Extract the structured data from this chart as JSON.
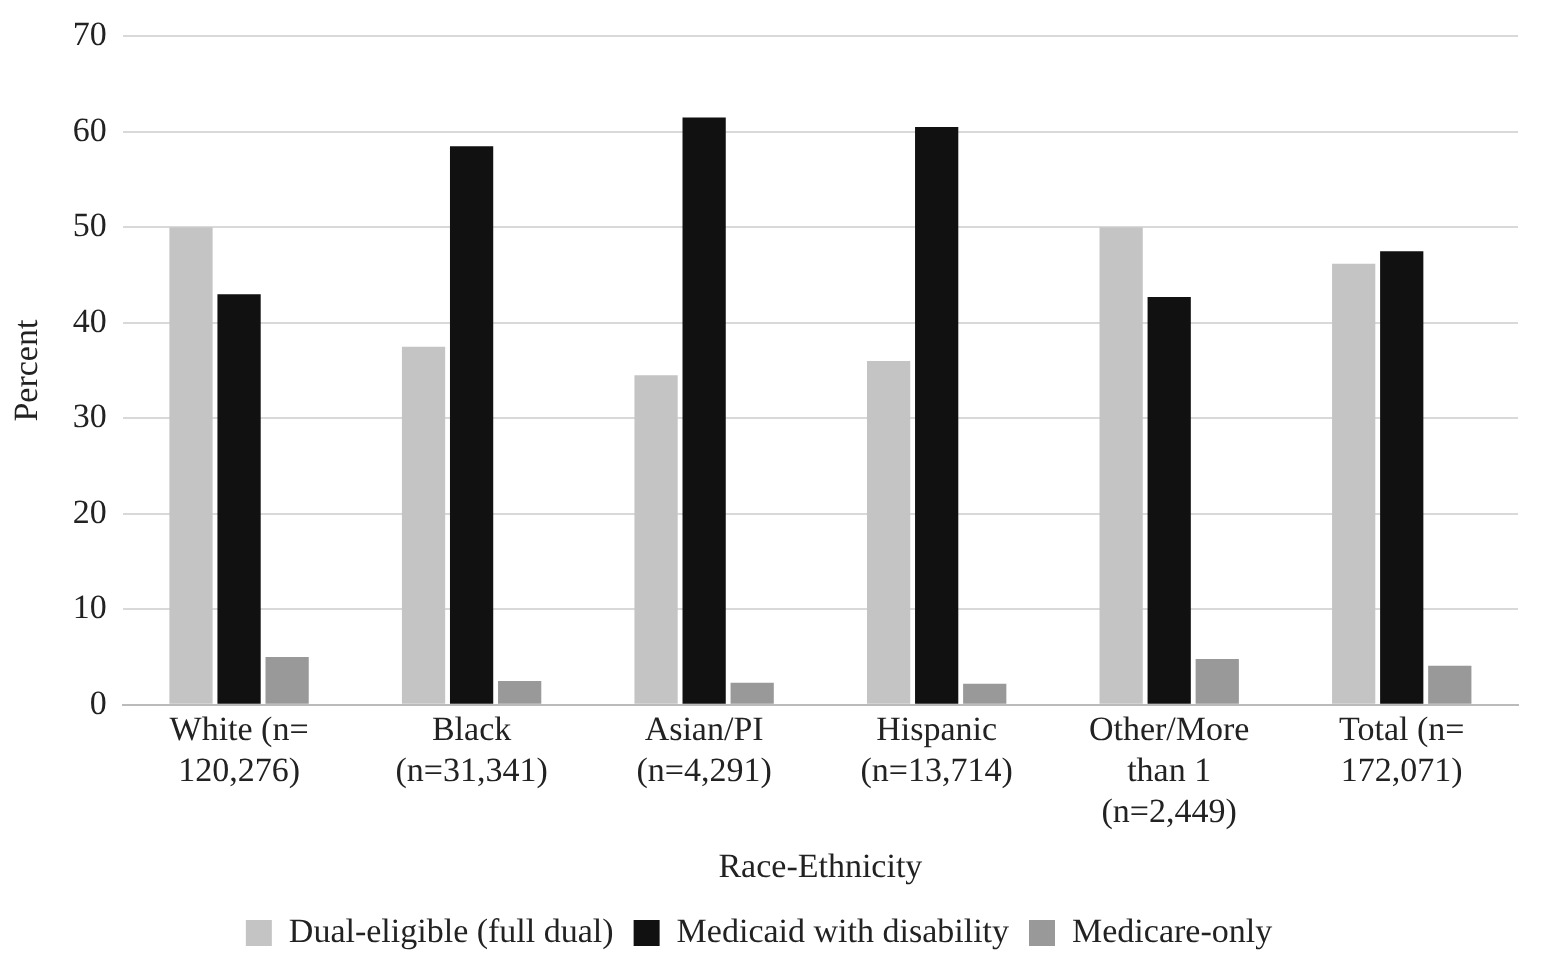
{
  "chart_data": {
    "type": "bar",
    "xlabel": "Race-Ethnicity",
    "ylabel": "Percent",
    "categories": [
      "White (n= 120,276)",
      "Black (n=31,341)",
      "Asian/PI (n=4,291)",
      "Hispanic (n=13,714)",
      "Other/More than 1 (n=2,449)",
      "Total (n= 172,071)"
    ],
    "series": [
      {
        "name": "Dual-eligible (full dual)",
        "color": "#c4c4c4",
        "values": [
          50,
          37.5,
          34.5,
          36,
          50,
          46.2
        ]
      },
      {
        "name": "Medicaid with disability",
        "color": "#111111",
        "values": [
          43,
          58.5,
          61.5,
          60.5,
          42.7,
          47.5
        ]
      },
      {
        "name": "Medicare-only",
        "color": "#999999",
        "values": [
          5,
          2.5,
          2.3,
          2.2,
          4.8,
          4.1
        ]
      }
    ],
    "ylim": [
      0,
      70
    ],
    "yticks": [
      0,
      10,
      20,
      30,
      40,
      50,
      60,
      70
    ],
    "grid": "y",
    "legend": "bottom"
  }
}
